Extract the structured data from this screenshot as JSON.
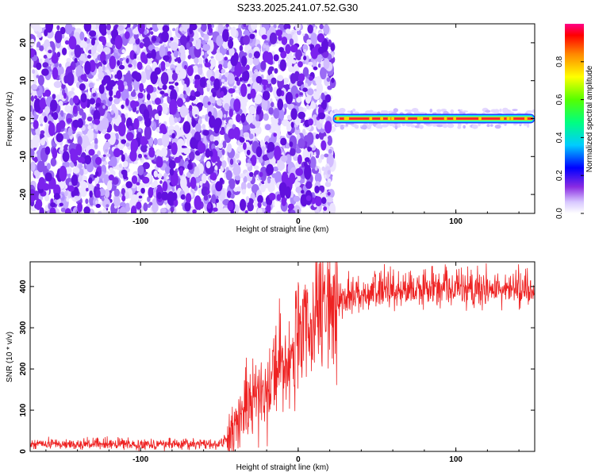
{
  "title": "S233.2025.241.07.52.G30",
  "chart_data": [
    {
      "type": "heatmap",
      "xlabel": "Height of straight line (km)",
      "ylabel": "Frequency (Hz)",
      "xlim": [
        -170,
        150
      ],
      "ylim": [
        -25,
        25
      ],
      "x_ticks": [
        -100,
        0,
        100
      ],
      "y_ticks": [
        -20,
        -10,
        0,
        10,
        20
      ],
      "noise_region_x": [
        -170,
        22
      ],
      "signal_line": {
        "x_start": 22,
        "x_end": 150,
        "frequency": 0
      },
      "colorbar": {
        "label": "Normalized spectral amplitude",
        "range": [
          0.0,
          1.0
        ],
        "ticks": [
          "0.0",
          "0.2",
          "0.4",
          "0.6",
          "0.8"
        ]
      }
    },
    {
      "type": "line",
      "xlabel": "Height of straight line (km)",
      "ylabel": "SNR (10 * v/v)",
      "xlim": [
        -170,
        150
      ],
      "ylim": [
        0,
        460
      ],
      "x_ticks": [
        -100,
        0,
        100
      ],
      "y_ticks": [
        0,
        100,
        200,
        300,
        400
      ],
      "color": "#ee2222",
      "profile": [
        [
          -170,
          18
        ],
        [
          -50,
          18
        ],
        [
          -45,
          30
        ],
        [
          -40,
          60
        ],
        [
          -35,
          100
        ],
        [
          -30,
          125
        ],
        [
          -25,
          145
        ],
        [
          -20,
          170
        ],
        [
          -15,
          190
        ],
        [
          -10,
          215
        ],
        [
          -5,
          240
        ],
        [
          0,
          260
        ],
        [
          5,
          285
        ],
        [
          10,
          305
        ],
        [
          15,
          325
        ],
        [
          20,
          345
        ],
        [
          25,
          365
        ],
        [
          30,
          375
        ],
        [
          40,
          385
        ],
        [
          50,
          390
        ],
        [
          70,
          392
        ],
        [
          90,
          395
        ],
        [
          110,
          392
        ],
        [
          130,
          392
        ],
        [
          150,
          392
        ]
      ]
    }
  ]
}
